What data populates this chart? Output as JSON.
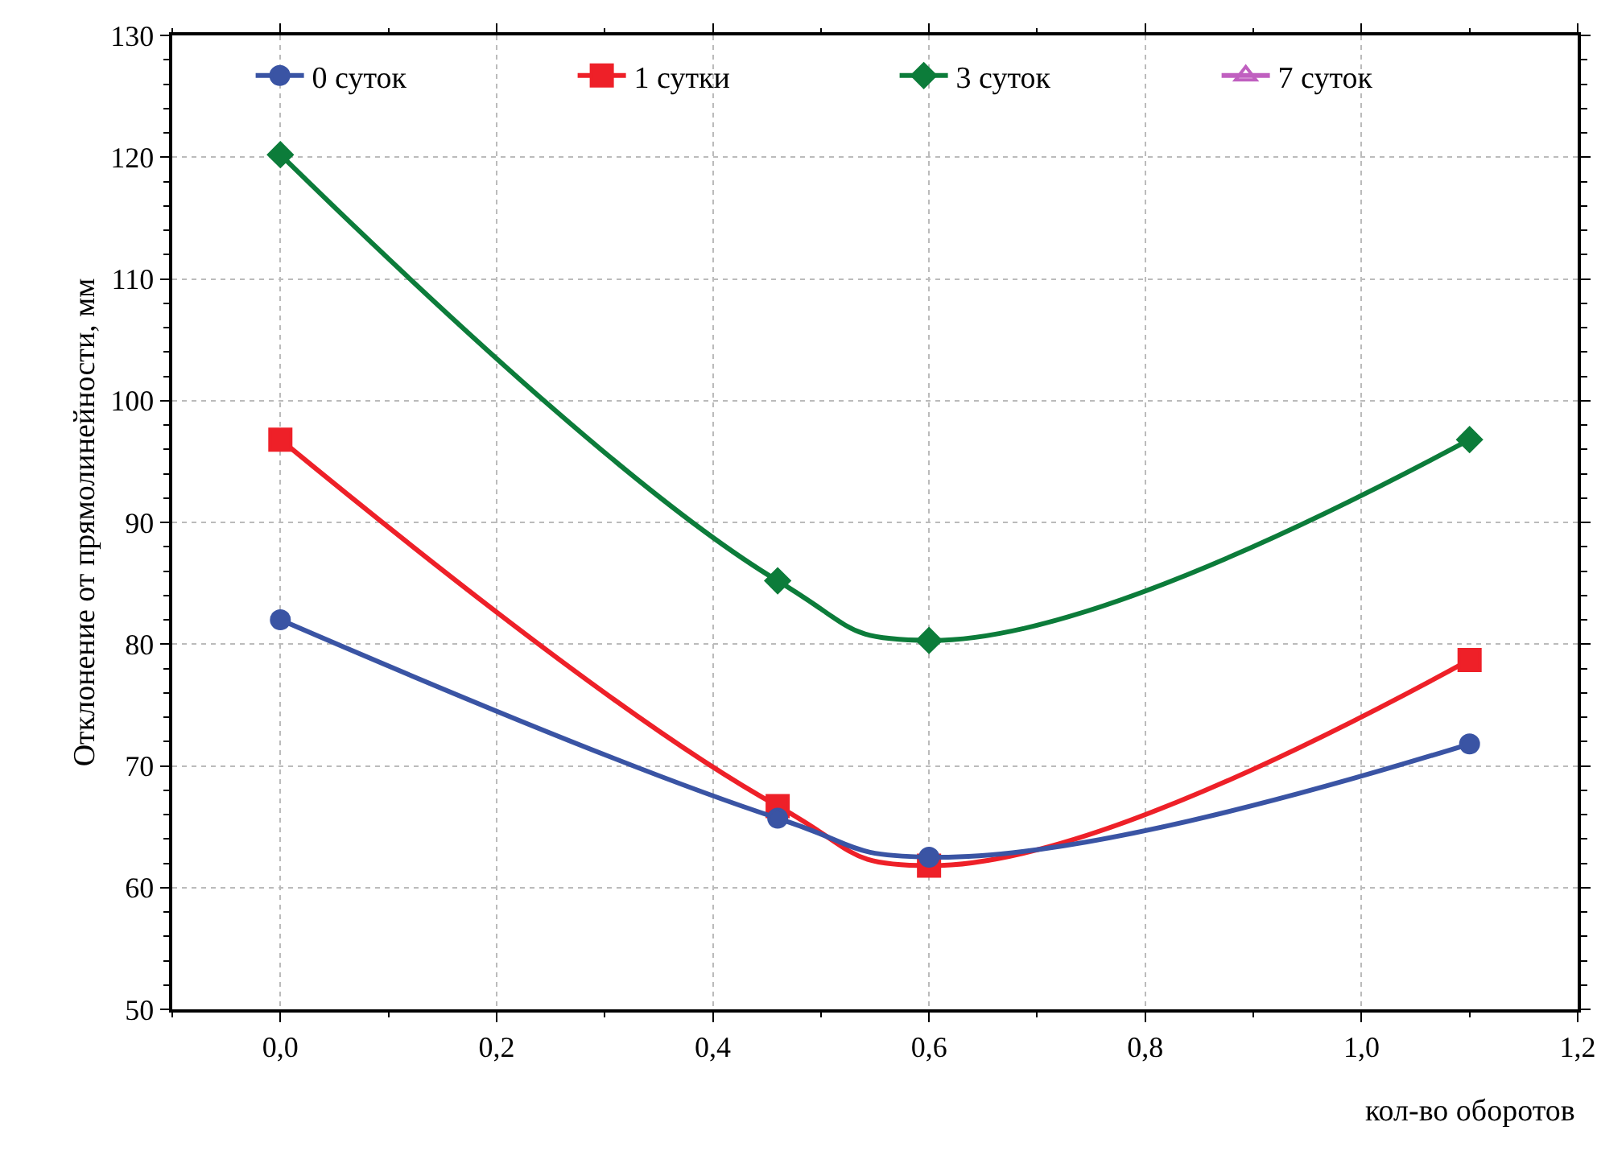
{
  "chart_data": {
    "type": "line",
    "xlabel": "кол-во оборотов",
    "ylabel": "Отклонение от прямолинейности, мм",
    "x": [
      0,
      0.46,
      0.6,
      1.1
    ],
    "series": [
      {
        "name": "0 суток",
        "color": "#3a54a4",
        "marker": "circle",
        "values": [
          82,
          65.7,
          62.5,
          71.8
        ]
      },
      {
        "name": "1 сутки",
        "color": "#ee2028",
        "marker": "square",
        "values": [
          96.8,
          66.7,
          61.8,
          78.7
        ]
      },
      {
        "name": "3 суток",
        "color": "#0c7c3a",
        "marker": "diamond",
        "values": [
          120.2,
          85.2,
          80.3,
          96.8
        ]
      },
      {
        "name": "7 суток",
        "color": "#c060c0",
        "marker": "triangle",
        "values": [
          null,
          null,
          null,
          null
        ]
      }
    ],
    "xlim": [
      -0.1,
      1.2
    ],
    "xticks": [
      {
        "value": 0,
        "label": "0,0"
      },
      {
        "value": 0.2,
        "label": "0,2"
      },
      {
        "value": 0.4,
        "label": "0,4"
      },
      {
        "value": 0.6,
        "label": "0,6"
      },
      {
        "value": 0.8,
        "label": "0,8"
      },
      {
        "value": 1,
        "label": "1,0"
      },
      {
        "value": 1.2,
        "label": "1,2"
      }
    ],
    "ylim": [
      50,
      130
    ],
    "yticks": [
      50,
      60,
      70,
      80,
      90,
      100,
      110,
      120,
      130
    ],
    "grid": true,
    "legend": "top right",
    "line_style": "solid"
  }
}
